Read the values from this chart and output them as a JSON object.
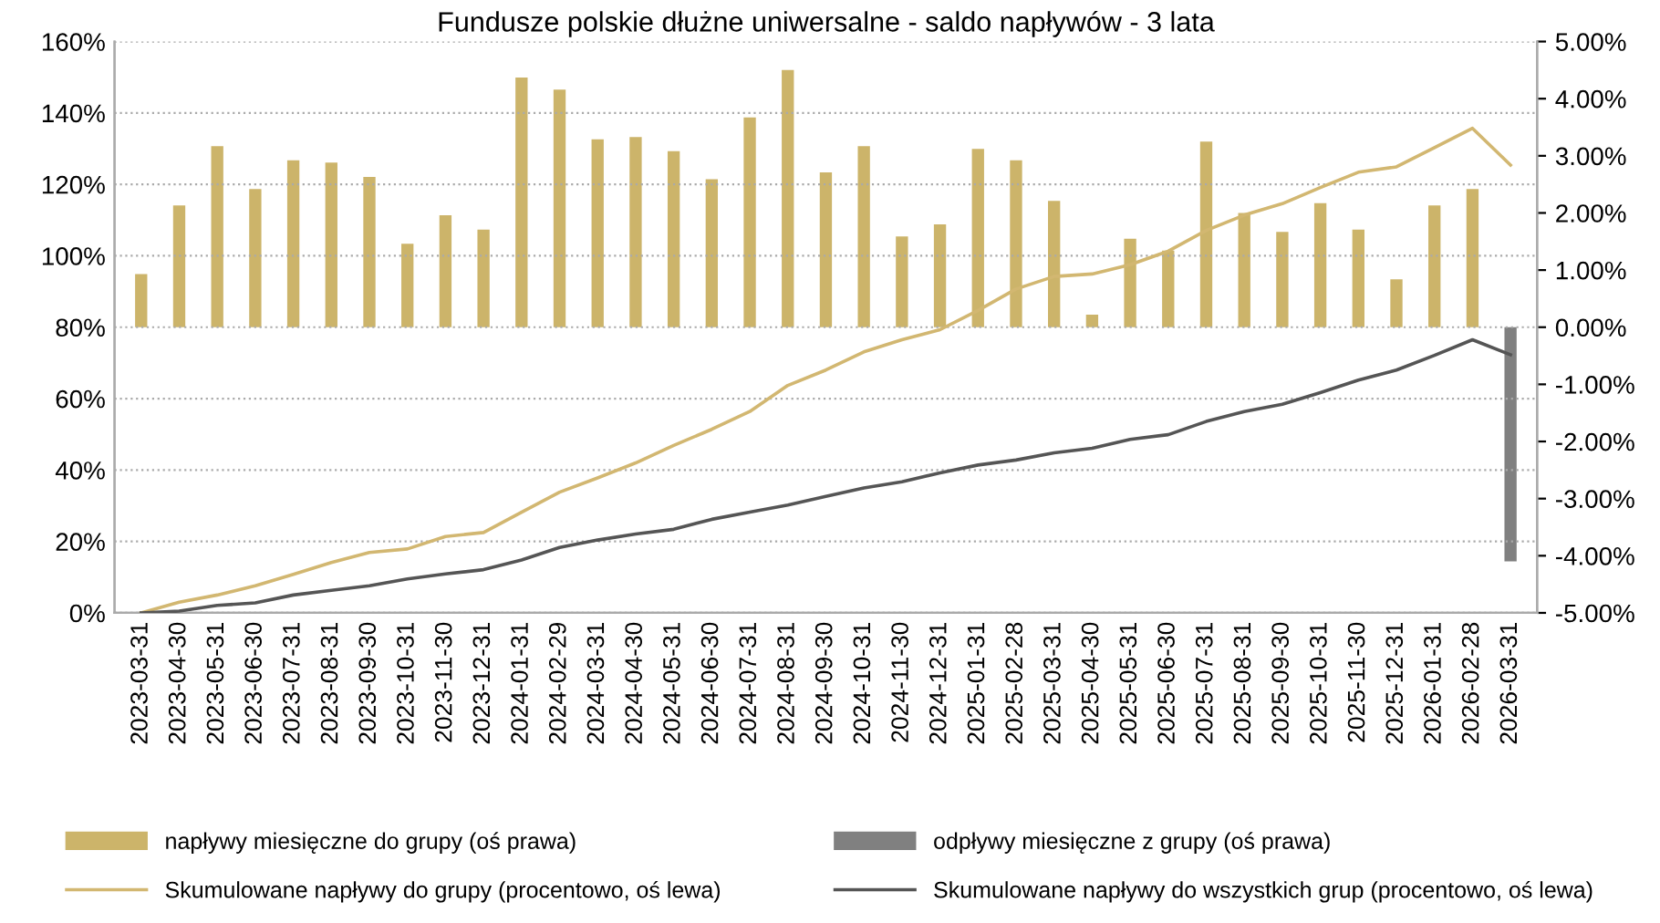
{
  "chart_data": {
    "type": "bar",
    "title": "Fundusze polskie dłużne uniwersalne - saldo napływów - 3 lata",
    "categories": [
      "2023-03-31",
      "2023-04-30",
      "2023-05-31",
      "2023-06-30",
      "2023-07-31",
      "2023-08-31",
      "2023-09-30",
      "2023-10-31",
      "2023-11-30",
      "2023-12-31",
      "2024-01-31",
      "2024-02-29",
      "2024-03-31",
      "2024-04-30",
      "2024-05-31",
      "2024-06-30",
      "2024-07-31",
      "2024-08-31",
      "2024-09-30",
      "2024-10-31",
      "2024-11-30",
      "2024-12-31",
      "2025-01-31",
      "2025-02-28",
      "2025-03-31",
      "2025-04-30",
      "2025-05-31",
      "2025-06-30",
      "2025-07-31",
      "2025-08-31",
      "2025-09-30",
      "2025-10-31",
      "2025-11-30",
      "2025-12-31",
      "2026-01-31",
      "2026-02-28",
      "2026-03-31"
    ],
    "series": [
      {
        "name": "napływy miesięczne do grupy (oś prawa)",
        "axis": "y2",
        "color": "#ccb46a",
        "values": [
          0.93,
          2.13,
          3.17,
          2.42,
          2.92,
          2.88,
          2.63,
          1.46,
          1.96,
          1.71,
          4.37,
          4.16,
          3.29,
          3.33,
          3.08,
          2.59,
          3.67,
          4.5,
          2.71,
          3.17,
          1.59,
          1.8,
          3.12,
          2.92,
          2.21,
          0.22,
          1.55,
          1.34,
          3.25,
          2.0,
          1.67,
          2.17,
          1.71,
          0.84,
          2.13,
          2.42,
          null
        ]
      },
      {
        "name": "odpływy miesięczne z grupy (oś prawa)",
        "axis": "y2",
        "color": "#808080",
        "values": [
          null,
          null,
          null,
          null,
          null,
          null,
          null,
          null,
          null,
          null,
          null,
          null,
          null,
          null,
          null,
          null,
          null,
          null,
          null,
          null,
          null,
          null,
          null,
          null,
          null,
          null,
          null,
          null,
          null,
          null,
          null,
          null,
          null,
          null,
          null,
          null,
          -4.1
        ]
      },
      {
        "name": "Skumulowane napływy do grupy (procentowo, oś lewa)",
        "type": "line",
        "color": "#d2b771",
        "values": [
          0,
          3,
          5,
          7.6,
          10.8,
          14.1,
          16.9,
          17.9,
          21.4,
          22.5,
          28.2,
          33.8,
          37.8,
          42,
          46.9,
          51.4,
          56.4,
          63.7,
          68,
          73.1,
          76.5,
          79.3,
          84.7,
          90.7,
          94.2,
          94.9,
          97.5,
          101.3,
          107.1,
          111.4,
          114.6,
          119.1,
          123.4,
          124.9,
          130.3,
          135.7,
          125.4
        ]
      },
      {
        "name": "Skumulowane napływy do wszystkich grup (procentowo, oś lewa)",
        "type": "line",
        "color": "#555555",
        "values": [
          0,
          0.5,
          2.1,
          2.8,
          5.0,
          6.3,
          7.6,
          9.5,
          10.9,
          12.1,
          14.8,
          18.3,
          20.4,
          22.1,
          23.4,
          26.2,
          28.2,
          30.2,
          32.6,
          35.0,
          36.7,
          39.2,
          41.4,
          42.8,
          44.8,
          46.1,
          48.6,
          49.9,
          53.6,
          56.4,
          58.4,
          61.7,
          65.2,
          68.0,
          72.1,
          76.5,
          72.3
        ]
      }
    ],
    "ylim": [
      0,
      160
    ],
    "yticks": [
      {
        "value": 0,
        "label": "0%"
      },
      {
        "value": 20,
        "label": "20%"
      },
      {
        "value": 40,
        "label": "40%"
      },
      {
        "value": 60,
        "label": "60%"
      },
      {
        "value": 80,
        "label": "80%"
      },
      {
        "value": 100,
        "label": "100%"
      },
      {
        "value": 120,
        "label": "120%"
      },
      {
        "value": 140,
        "label": "140%"
      },
      {
        "value": 160,
        "label": "160%"
      }
    ],
    "y2lim": [
      -5,
      5
    ],
    "y2ticks": [
      {
        "value": -5,
        "label": "-5.00%"
      },
      {
        "value": -4,
        "label": "-4.00%"
      },
      {
        "value": -3,
        "label": "-3.00%"
      },
      {
        "value": -2,
        "label": "-2.00%"
      },
      {
        "value": -1,
        "label": "-1.00%"
      },
      {
        "value": 0,
        "label": "0.00%"
      },
      {
        "value": 1,
        "label": "1.00%"
      },
      {
        "value": 2,
        "label": "2.00%"
      },
      {
        "value": 3,
        "label": "3.00%"
      },
      {
        "value": 4,
        "label": "4.00%"
      },
      {
        "value": 5,
        "label": "5.00%"
      }
    ],
    "grid": "y",
    "legend": "bottom",
    "marker": "none",
    "line_style": "solid"
  }
}
